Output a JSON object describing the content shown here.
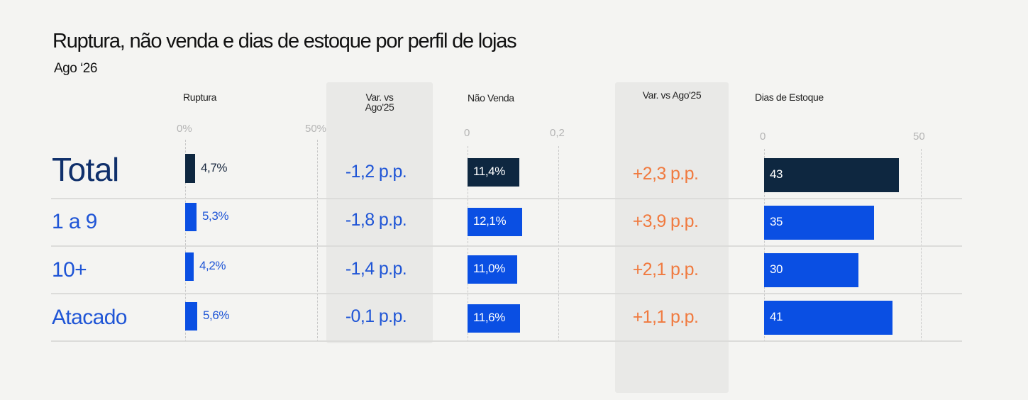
{
  "title": "Ruptura, não venda e dias de estoque por perfil de lojas",
  "subtitle": "Ago ‘26",
  "colors": {
    "dark": "#0e2740",
    "blue": "#0a4fe3",
    "orange": "#f07a3f",
    "label_blue": "#1f55d6"
  },
  "chart_data": {
    "type": "table",
    "rows": [
      "Total",
      "1 a 9",
      "10+",
      "Atacado"
    ],
    "ruptura": {
      "header": "Ruptura",
      "ticks": [
        "0%",
        "50%"
      ],
      "range": [
        0,
        50
      ],
      "values": [
        4.7,
        5.3,
        4.2,
        5.6
      ],
      "labels": [
        "4,7%",
        "5,3%",
        "4,2%",
        "5,6%"
      ]
    },
    "var_ruptura": {
      "header_line1": "Var. vs",
      "header_line2": "Ago'25",
      "values": [
        "-1,2 p.p.",
        "-1,8 p.p.",
        "-1,4 p.p.",
        "-0,1 p.p."
      ]
    },
    "nao_venda": {
      "header": "Não Venda",
      "ticks": [
        "0",
        "0,2"
      ],
      "range": [
        0,
        0.2
      ],
      "values": [
        0.114,
        0.121,
        0.11,
        0.116
      ],
      "labels": [
        "11,4%",
        "12,1%",
        "11,0%",
        "11,6%"
      ]
    },
    "var_nao_venda": {
      "header": "Var. vs Ago'25",
      "values": [
        "+2,3 p.p.",
        "+3,9 p.p.",
        "+2,1 p.p.",
        "+1,1 p.p."
      ]
    },
    "dias_estoque": {
      "header": "Dias de Estoque",
      "ticks": [
        "0",
        "50"
      ],
      "range": [
        0,
        50
      ],
      "values": [
        43,
        35,
        30,
        41
      ],
      "labels": [
        "43",
        "35",
        "30",
        "41"
      ]
    }
  }
}
